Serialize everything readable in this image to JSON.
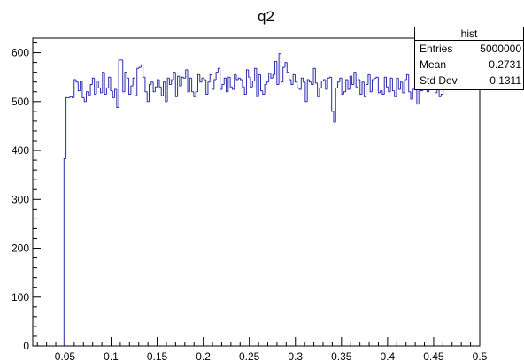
{
  "chart_data": {
    "type": "bar",
    "title": "q2",
    "xlabel": "",
    "ylabel": "",
    "xlim": [
      0.015,
      0.5
    ],
    "ylim": [
      0,
      630
    ],
    "x_ticks": [
      0.05,
      0.1,
      0.15,
      0.2,
      0.25,
      0.3,
      0.35,
      0.4,
      0.45,
      0.5
    ],
    "x_tick_labels": [
      "0.05",
      "0.1",
      "0.15",
      "0.2",
      "0.25",
      "0.3",
      "0.35",
      "0.4",
      "0.45",
      "0.5"
    ],
    "y_ticks": [
      0,
      100,
      200,
      300,
      400,
      500,
      600
    ],
    "y_tick_labels": [
      "0",
      "100",
      "200",
      "300",
      "400",
      "500",
      "600"
    ],
    "grid": false,
    "legend": "none",
    "line_color": "#2b2bb0",
    "bin_start": 0.0467,
    "bin_width": 0.0022,
    "values": [
      0,
      383,
      508,
      508,
      510,
      508,
      545,
      540,
      522,
      541,
      508,
      500,
      520,
      512,
      535,
      548,
      515,
      542,
      528,
      518,
      560,
      515,
      528,
      550,
      522,
      508,
      525,
      488,
      585,
      585,
      520,
      560,
      548,
      515,
      532,
      548,
      512,
      568,
      570,
      575,
      550,
      520,
      500,
      535,
      540,
      520,
      530,
      545,
      530,
      512,
      540,
      500,
      548,
      535,
      545,
      560,
      510,
      552,
      532,
      550,
      548,
      565,
      520,
      548,
      520,
      510,
      520,
      555,
      540,
      548,
      545,
      515,
      540,
      555,
      525,
      545,
      560,
      568,
      525,
      535,
      548,
      520,
      550,
      530,
      525,
      555,
      545,
      548,
      545,
      530,
      515,
      565,
      550,
      530,
      542,
      568,
      510,
      555,
      522,
      515,
      535,
      540,
      558,
      548,
      555,
      582,
      535,
      598,
      540,
      570,
      580,
      560,
      545,
      535,
      555,
      540,
      528,
      525,
      548,
      540,
      500,
      545,
      540,
      535,
      568,
      538,
      510,
      528,
      542,
      545,
      525,
      548,
      550,
      480,
      458,
      528,
      540,
      548,
      515,
      520,
      545,
      525,
      552,
      535,
      560,
      530,
      545,
      515,
      540,
      510,
      535,
      555,
      520,
      545,
      548,
      550,
      518,
      522,
      515,
      550,
      530,
      520,
      548,
      522,
      510,
      548,
      525,
      540,
      518,
      545,
      555,
      520,
      505,
      525,
      532,
      495,
      535,
      522,
      545,
      530,
      520,
      532,
      525,
      545,
      518,
      535,
      510,
      515,
      528,
      525
    ],
    "stats_box": {
      "title": "hist",
      "rows": [
        {
          "label": "Entries",
          "value": "5000000"
        },
        {
          "label": "Mean",
          "value": "0.2731"
        },
        {
          "label": "Std Dev",
          "value": "0.1311"
        }
      ]
    }
  }
}
